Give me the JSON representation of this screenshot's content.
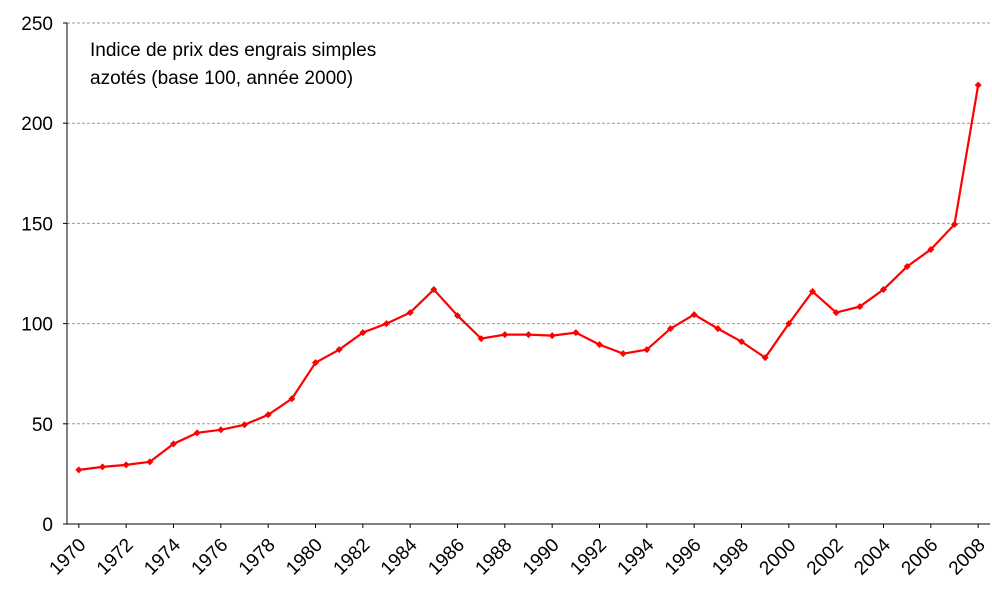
{
  "chart_data": {
    "type": "line",
    "annotations": [
      "Indice de prix des engrais simples",
      "azotés (base 100, année 2000)"
    ],
    "x": [
      1970,
      1971,
      1972,
      1973,
      1974,
      1975,
      1976,
      1977,
      1978,
      1979,
      1980,
      1981,
      1982,
      1983,
      1984,
      1985,
      1986,
      1987,
      1988,
      1989,
      1990,
      1991,
      1992,
      1993,
      1994,
      1995,
      1996,
      1997,
      1998,
      1999,
      2000,
      2001,
      2002,
      2003,
      2004,
      2005,
      2006,
      2007,
      2008
    ],
    "series": [
      {
        "color": "#ff0000",
        "values": [
          27,
          28.5,
          29.5,
          31,
          40,
          45.5,
          47,
          49.5,
          54.5,
          62.5,
          80.5,
          87,
          95.5,
          100,
          105.5,
          117,
          104,
          92.5,
          94.5,
          94.5,
          94,
          95.5,
          89.5,
          85,
          87,
          97.5,
          104.5,
          97.5,
          91,
          83,
          100,
          116,
          105.5,
          108.5,
          117,
          128.5,
          137,
          149.5,
          219
        ]
      }
    ],
    "xlim": [
      1969.5,
      2008.5
    ],
    "xticks": [
      1970,
      1972,
      1974,
      1976,
      1978,
      1980,
      1982,
      1984,
      1986,
      1988,
      1990,
      1992,
      1994,
      1996,
      1998,
      2000,
      2002,
      2004,
      2006,
      2008
    ],
    "ylim": [
      0,
      250
    ],
    "yticks": [
      0,
      50,
      100,
      150,
      200,
      250
    ],
    "grid": true
  }
}
